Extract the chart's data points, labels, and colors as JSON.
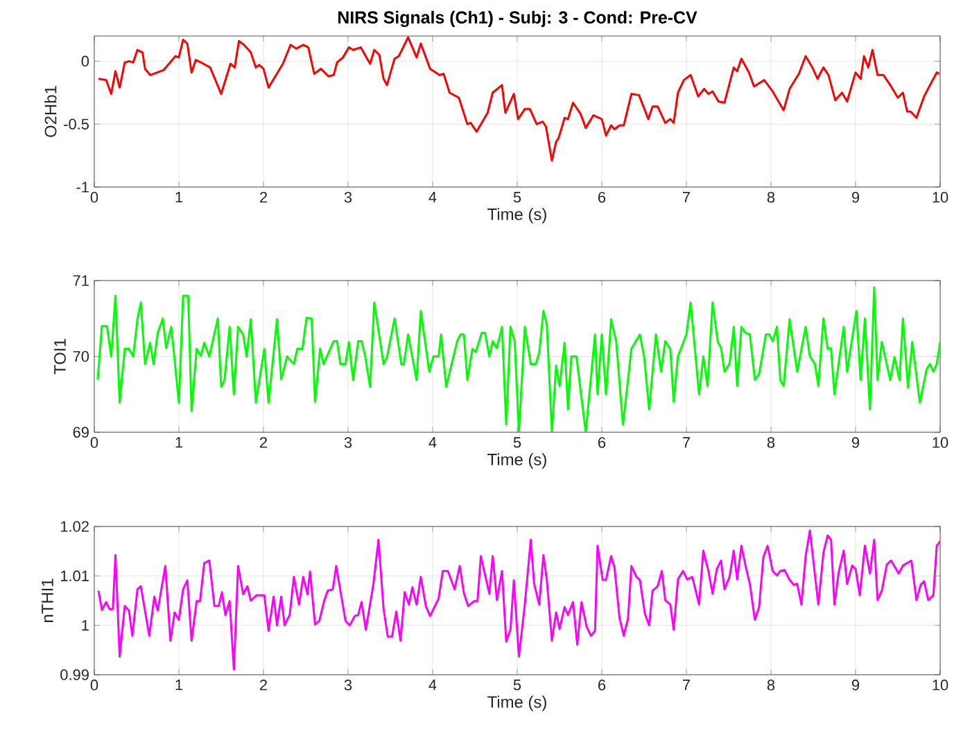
{
  "chart_data": [
    {
      "type": "line",
      "title": "NIRS Signals (Ch1) - Subj: 3 - Cond: Pre-CV",
      "xlabel": "Time (s)",
      "ylabel": "O2Hb1",
      "xlim": [
        0,
        10
      ],
      "ylim": [
        -1,
        0.2
      ],
      "xticks": [
        0,
        1,
        2,
        3,
        4,
        5,
        6,
        7,
        8,
        9,
        10
      ],
      "yticks": [
        -1,
        -0.5,
        0
      ],
      "grid": true,
      "series": [
        {
          "color": "#ff0000",
          "x": [
            0.05,
            0.14,
            0.2,
            0.25,
            0.3,
            0.36,
            0.41,
            0.46,
            0.51,
            0.57,
            0.6,
            0.66,
            0.82,
            0.96,
            1.0,
            1.05,
            1.1,
            1.15,
            1.2,
            1.29,
            1.37,
            1.5,
            1.61,
            1.66,
            1.71,
            1.77,
            1.85,
            1.91,
            1.95,
            2.0,
            2.06,
            2.23,
            2.32,
            2.39,
            2.47,
            2.53,
            2.6,
            2.68,
            2.77,
            2.83,
            2.87,
            2.94,
            3.01,
            3.06,
            3.15,
            3.26,
            3.31,
            3.37,
            3.42,
            3.46,
            3.55,
            3.6,
            3.71,
            3.81,
            3.86,
            3.97,
            4.08,
            4.13,
            4.2,
            4.31,
            4.41,
            4.45,
            4.52,
            4.65,
            4.71,
            4.82,
            4.86,
            4.96,
            5.01,
            5.09,
            5.15,
            5.23,
            5.3,
            5.34,
            5.41,
            5.46,
            5.49,
            5.56,
            5.6,
            5.66,
            5.75,
            5.81,
            5.9,
            6.0,
            6.05,
            6.11,
            6.15,
            6.21,
            6.26,
            6.35,
            6.44,
            6.55,
            6.6,
            6.66,
            6.75,
            6.81,
            6.85,
            6.9,
            6.97,
            7.05,
            7.14,
            7.21,
            7.26,
            7.31,
            7.38,
            7.45,
            7.56,
            7.6,
            7.65,
            7.74,
            7.8,
            7.92,
            8.02,
            8.15,
            8.22,
            8.33,
            8.41,
            8.49,
            8.55,
            8.62,
            8.68,
            8.76,
            8.84,
            8.9,
            9.0,
            9.06,
            9.1,
            9.15,
            9.2,
            9.26,
            9.33,
            9.42,
            9.5,
            9.56,
            9.61,
            9.65,
            9.72,
            9.81,
            9.88,
            9.96,
            9.99
          ],
          "values": [
            -0.14,
            -0.15,
            -0.26,
            -0.08,
            -0.21,
            -0.01,
            0,
            -0.01,
            0.09,
            0.07,
            -0.06,
            -0.11,
            -0.07,
            0.04,
            0.03,
            0.17,
            0.14,
            -0.09,
            0.01,
            -0.02,
            -0.05,
            -0.26,
            -0.02,
            -0.05,
            0.16,
            0.13,
            0.07,
            -0.05,
            -0.03,
            -0.06,
            -0.21,
            -0.02,
            0.13,
            0.1,
            0.13,
            0.11,
            -0.1,
            -0.06,
            -0.12,
            -0.11,
            -0.01,
            0.03,
            0.11,
            0.09,
            0.11,
            -0.02,
            0.09,
            0.05,
            -0.14,
            -0.19,
            0.02,
            0.04,
            0.19,
            0.03,
            0.14,
            -0.06,
            -0.11,
            -0.1,
            -0.25,
            -0.29,
            -0.5,
            -0.49,
            -0.56,
            -0.41,
            -0.25,
            -0.19,
            -0.41,
            -0.26,
            -0.46,
            -0.38,
            -0.38,
            -0.5,
            -0.48,
            -0.52,
            -0.79,
            -0.64,
            -0.61,
            -0.45,
            -0.46,
            -0.33,
            -0.42,
            -0.53,
            -0.43,
            -0.46,
            -0.59,
            -0.51,
            -0.54,
            -0.51,
            -0.51,
            -0.26,
            -0.27,
            -0.46,
            -0.36,
            -0.36,
            -0.49,
            -0.46,
            -0.49,
            -0.25,
            -0.15,
            -0.11,
            -0.28,
            -0.22,
            -0.26,
            -0.24,
            -0.32,
            -0.33,
            -0.05,
            -0.08,
            0.02,
            -0.09,
            -0.2,
            -0.15,
            -0.24,
            -0.39,
            -0.22,
            -0.1,
            0.04,
            -0.05,
            -0.14,
            -0.05,
            -0.11,
            -0.31,
            -0.25,
            -0.32,
            -0.09,
            -0.14,
            0.04,
            -0.05,
            0.09,
            -0.11,
            -0.11,
            -0.2,
            -0.29,
            -0.25,
            -0.4,
            -0.4,
            -0.45,
            -0.28,
            -0.19,
            -0.09,
            -0.1
          ]
        }
      ]
    },
    {
      "type": "line",
      "xlabel": "Time (s)",
      "ylabel": "TOI1",
      "xlim": [
        0,
        10
      ],
      "ylim": [
        69,
        71
      ],
      "xticks": [
        0,
        1,
        2,
        3,
        4,
        5,
        6,
        7,
        8,
        9,
        10
      ],
      "yticks": [
        69,
        70,
        71
      ],
      "grid": true,
      "series": [
        {
          "color": "#00ff00",
          "x": [
            0.04,
            0.09,
            0.15,
            0.2,
            0.25,
            0.3,
            0.36,
            0.41,
            0.46,
            0.51,
            0.55,
            0.6,
            0.66,
            0.7,
            0.75,
            0.81,
            0.85,
            0.91,
            1.0,
            1.05,
            1.11,
            1.15,
            1.21,
            1.26,
            1.3,
            1.36,
            1.46,
            1.5,
            1.54,
            1.6,
            1.65,
            1.7,
            1.76,
            1.8,
            1.85,
            1.91,
            2.01,
            2.06,
            2.16,
            2.21,
            2.28,
            2.36,
            2.4,
            2.46,
            2.51,
            2.57,
            2.61,
            2.67,
            2.71,
            2.83,
            2.87,
            2.91,
            2.97,
            3.01,
            3.06,
            3.12,
            3.16,
            3.2,
            3.26,
            3.31,
            3.42,
            3.46,
            3.55,
            3.63,
            3.66,
            3.71,
            3.81,
            3.86,
            3.96,
            4.01,
            4.07,
            4.1,
            4.16,
            4.29,
            4.33,
            4.37,
            4.41,
            4.47,
            4.51,
            4.58,
            4.62,
            4.67,
            4.71,
            4.76,
            4.82,
            4.87,
            4.92,
            4.97,
            5.02,
            5.09,
            5.16,
            5.22,
            5.26,
            5.31,
            5.35,
            5.41,
            5.46,
            5.5,
            5.56,
            5.6,
            5.64,
            5.7,
            5.81,
            5.92,
            5.95,
            6.0,
            6.05,
            6.11,
            6.17,
            6.25,
            6.35,
            6.45,
            6.5,
            6.56,
            6.64,
            6.7,
            6.75,
            6.81,
            6.85,
            6.9,
            7.0,
            7.05,
            7.15,
            7.2,
            7.25,
            7.31,
            7.37,
            7.41,
            7.45,
            7.51,
            7.56,
            7.6,
            7.65,
            7.7,
            7.75,
            7.81,
            7.86,
            7.94,
            7.98,
            8.02,
            8.07,
            8.11,
            8.15,
            8.22,
            8.31,
            8.41,
            8.46,
            8.52,
            8.56,
            8.62,
            8.67,
            8.71,
            8.75,
            8.86,
            8.9,
            9.01,
            9.06,
            9.11,
            9.17,
            9.22,
            9.26,
            9.31,
            9.41,
            9.46,
            9.52,
            9.56,
            9.62,
            9.67,
            9.76,
            9.84,
            9.88,
            9.92,
            9.96,
            10.0
          ],
          "values": [
            69.69,
            70.4,
            70.4,
            70.0,
            70.8,
            69.39,
            70.1,
            70.1,
            70.0,
            70.49,
            70.71,
            69.9,
            70.18,
            69.9,
            70.31,
            70.5,
            70.11,
            70.39,
            69.39,
            70.8,
            70.8,
            69.28,
            70.1,
            70.01,
            70.18,
            70.0,
            70.5,
            69.6,
            69.69,
            70.39,
            69.5,
            70.39,
            70.29,
            70.0,
            70.49,
            69.39,
            70.1,
            69.39,
            70.49,
            69.7,
            70.0,
            69.9,
            70.1,
            70.1,
            70.51,
            70.5,
            69.4,
            70.1,
            69.9,
            70.2,
            70.2,
            69.9,
            69.9,
            70.19,
            69.69,
            70.2,
            70.2,
            70.02,
            69.6,
            70.71,
            69.9,
            69.99,
            70.5,
            69.9,
            69.9,
            70.29,
            69.69,
            70.6,
            69.8,
            70.0,
            70.0,
            70.29,
            69.6,
            70.2,
            70.29,
            70.29,
            69.69,
            70.1,
            70.06,
            70.31,
            70.31,
            70.0,
            70.2,
            70.11,
            70.39,
            69.1,
            70.39,
            70.2,
            69.0,
            70.39,
            69.9,
            69.9,
            70.05,
            70.6,
            70.42,
            69.0,
            69.88,
            69.61,
            70.18,
            69.3,
            70.0,
            70.0,
            69.0,
            70.29,
            69.5,
            70.29,
            69.5,
            70.49,
            70.2,
            69.1,
            70.1,
            70.29,
            70.0,
            69.3,
            70.29,
            69.8,
            70.2,
            70.1,
            69.4,
            70.0,
            70.29,
            70.71,
            69.5,
            70.0,
            69.61,
            70.71,
            70.2,
            70.11,
            69.8,
            69.9,
            70.39,
            69.61,
            70.39,
            70.31,
            70.29,
            69.69,
            69.77,
            70.29,
            70.29,
            70.2,
            70.39,
            69.69,
            69.61,
            70.49,
            69.8,
            70.39,
            70.0,
            69.9,
            69.61,
            70.5,
            70.1,
            70.11,
            69.5,
            70.39,
            69.8,
            70.6,
            69.69,
            70.5,
            69.3,
            70.91,
            69.69,
            70.19,
            69.69,
            69.99,
            69.69,
            70.5,
            69.59,
            70.19,
            69.39,
            69.83,
            69.9,
            69.8,
            69.9,
            70.19
          ]
        }
      ]
    },
    {
      "type": "line",
      "xlabel": "Time (s)",
      "ylabel": "nTHI1",
      "xlim": [
        0,
        10
      ],
      "ylim": [
        0.99,
        1.02
      ],
      "xticks": [
        0,
        1,
        2,
        3,
        4,
        5,
        6,
        7,
        8,
        9,
        10
      ],
      "yticks": [
        0.99,
        1,
        1.01,
        1.02
      ],
      "grid": true,
      "series": [
        {
          "color": "#ff00ff",
          "x": [
            0.05,
            0.09,
            0.14,
            0.18,
            0.22,
            0.25,
            0.3,
            0.36,
            0.41,
            0.45,
            0.51,
            0.55,
            0.65,
            0.71,
            0.75,
            0.84,
            0.9,
            0.95,
            1.0,
            1.05,
            1.1,
            1.15,
            1.21,
            1.25,
            1.3,
            1.36,
            1.42,
            1.47,
            1.51,
            1.55,
            1.6,
            1.65,
            1.7,
            1.76,
            1.81,
            1.85,
            1.92,
            2.01,
            2.06,
            2.12,
            2.16,
            2.21,
            2.25,
            2.31,
            2.36,
            2.42,
            2.47,
            2.52,
            2.55,
            2.61,
            2.66,
            2.72,
            2.76,
            2.82,
            2.86,
            2.97,
            3.02,
            3.08,
            3.12,
            3.16,
            3.21,
            3.3,
            3.36,
            3.42,
            3.47,
            3.52,
            3.57,
            3.62,
            3.67,
            3.72,
            3.76,
            3.81,
            3.86,
            3.92,
            3.97,
            4.07,
            4.12,
            4.18,
            4.26,
            4.32,
            4.37,
            4.42,
            4.49,
            4.53,
            4.57,
            4.67,
            4.71,
            4.76,
            4.82,
            4.87,
            4.92,
            4.96,
            5.02,
            5.09,
            5.16,
            5.2,
            5.26,
            5.31,
            5.35,
            5.41,
            5.46,
            5.5,
            5.56,
            5.6,
            5.66,
            5.71,
            5.76,
            5.82,
            5.87,
            5.92,
            5.95,
            6.01,
            6.05,
            6.11,
            6.15,
            6.21,
            6.26,
            6.31,
            6.35,
            6.41,
            6.45,
            6.51,
            6.56,
            6.6,
            6.66,
            6.71,
            6.75,
            6.81,
            6.85,
            6.9,
            6.96,
            7.01,
            7.07,
            7.15,
            7.2,
            7.26,
            7.31,
            7.36,
            7.41,
            7.45,
            7.51,
            7.56,
            7.6,
            7.65,
            7.7,
            7.75,
            7.81,
            7.86,
            7.91,
            7.96,
            8.02,
            8.07,
            8.11,
            8.16,
            8.22,
            8.27,
            8.31,
            8.36,
            8.41,
            8.46,
            8.56,
            8.62,
            8.67,
            8.71,
            8.75,
            8.8,
            8.86,
            8.9,
            8.96,
            9.0,
            9.05,
            9.11,
            9.17,
            9.22,
            9.26,
            9.31,
            9.37,
            9.42,
            9.51,
            9.56,
            9.66,
            9.72,
            9.77,
            9.81,
            9.86,
            9.92,
            9.96,
            10.0
          ],
          "values": [
            1.007,
            1.0031,
            1.0047,
            1.0033,
            1.0033,
            1.0142,
            0.9937,
            1.0039,
            1.003,
            0.9979,
            1.0073,
            1.0079,
            0.9979,
            1.0058,
            1.003,
            1.012,
            0.9969,
            1.0026,
            1.0011,
            1.0073,
            1.0091,
            0.9969,
            1.0049,
            1.0049,
            1.0126,
            1.0131,
            1.0039,
            1.0039,
            1.0067,
            1.0021,
            1.0049,
            0.9911,
            1.012,
            1.0063,
            1.0079,
            1.005,
            1.0061,
            1.0061,
            0.9989,
            1.0058,
            1.0,
            1.0058,
            1.0,
            1.0021,
            1.0098,
            1.0042,
            1.0098,
            1.0063,
            1.0109,
            1.0002,
            1.0009,
            1.0051,
            1.007,
            1.0073,
            1.012,
            1.0009,
            1.0,
            1.0019,
            1.0021,
            1.0047,
            0.9991,
            1.0084,
            1.0173,
            1.0033,
            0.9977,
            0.9977,
            1.0028,
            0.9969,
            1.0067,
            1.0042,
            1.0077,
            1.0042,
            1.0098,
            1.0039,
            1.0019,
            1.0054,
            1.011,
            1.011,
            1.0073,
            1.012,
            1.0065,
            1.0039,
            1.0049,
            1.0049,
            1.014,
            1.0064,
            1.014,
            1.0051,
            1.011,
            0.9967,
            0.9991,
            1.0091,
            0.9937,
            1.0042,
            1.0173,
            1.0084,
            1.0042,
            1.0142,
            1.0092,
            0.9969,
            1.0026,
            0.9993,
            1.0037,
            1.0021,
            1.0047,
            0.9961,
            1.0047,
            0.9998,
            0.9979,
            0.9989,
            1.0161,
            1.0092,
            1.0092,
            1.014,
            1.0117,
            1.0014,
            0.9979,
            1.0014,
            1.012,
            1.0098,
            1.0092,
            1.0023,
            1.0,
            1.007,
            1.0079,
            1.011,
            1.0051,
            1.0042,
            0.9991,
            1.0093,
            1.011,
            1.0093,
            1.0098,
            1.0042,
            1.0151,
            1.011,
            1.0064,
            1.0114,
            1.0131,
            1.0073,
            1.0098,
            1.0151,
            1.0093,
            1.0161,
            1.012,
            1.0084,
            1.0011,
            1.0037,
            1.0138,
            1.0161,
            1.011,
            1.0101,
            1.011,
            1.0112,
            1.0092,
            1.0082,
            1.0084,
            1.0042,
            1.014,
            1.0192,
            1.0042,
            1.0147,
            1.0182,
            1.0173,
            1.0042,
            1.0107,
            1.0151,
            1.0084,
            1.0121,
            1.0114,
            1.0061,
            1.0161,
            1.0105,
            1.0173,
            1.0051,
            1.007,
            1.0123,
            1.0131,
            1.0105,
            1.0121,
            1.0131,
            1.0051,
            1.0082,
            1.0089,
            1.0051,
            1.0061,
            1.0161,
            1.017
          ]
        }
      ]
    }
  ]
}
